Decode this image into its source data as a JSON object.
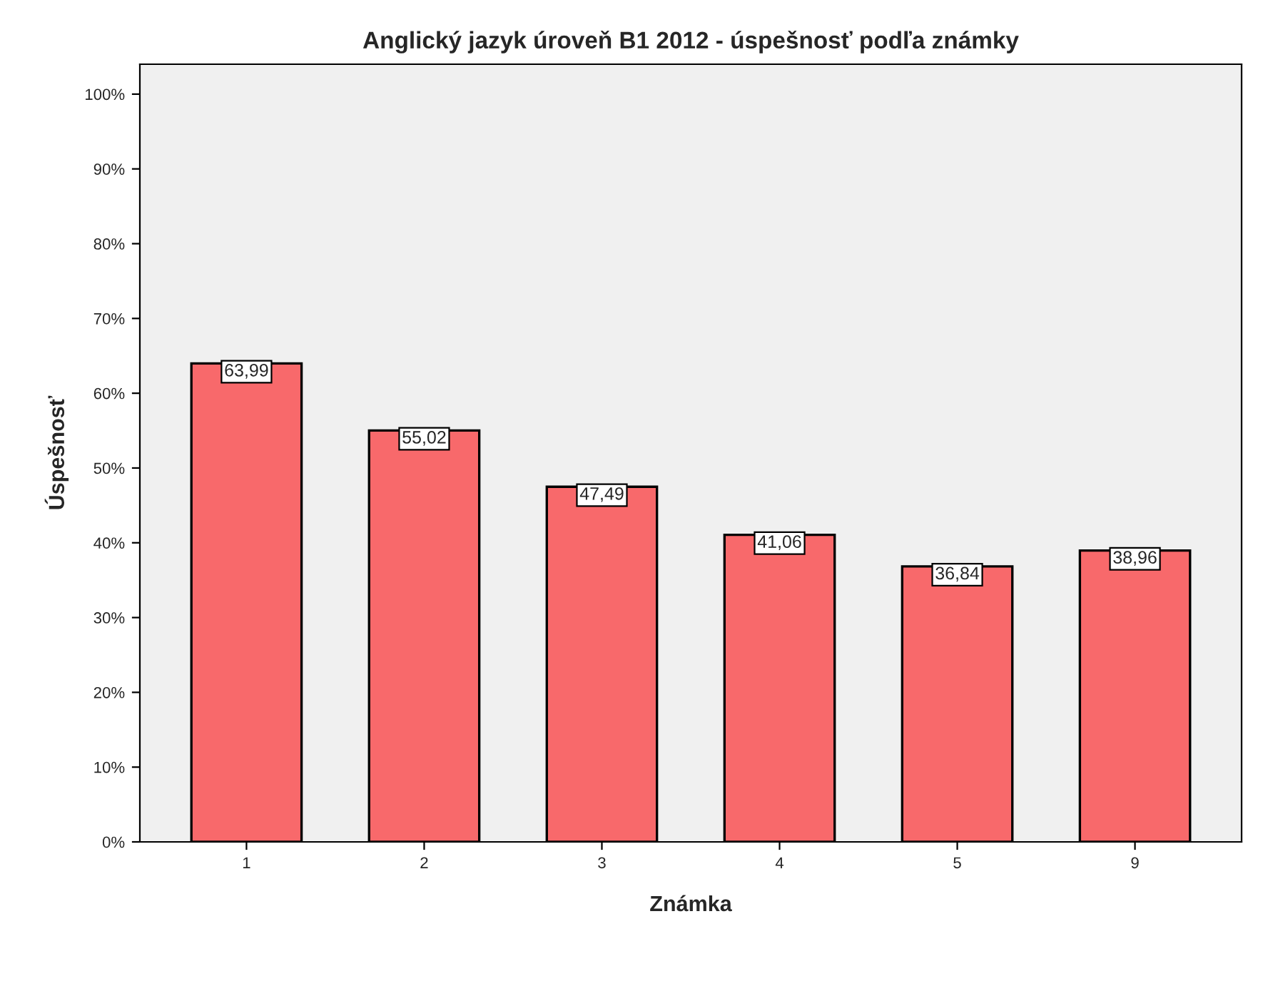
{
  "chart_data": {
    "type": "bar",
    "title": "Anglický jazyk úroveň B1 2012 - úspešnosť podľa známky",
    "xlabel": "Známka",
    "ylabel": "Úspešnosť",
    "categories": [
      "1",
      "2",
      "3",
      "4",
      "5",
      "9"
    ],
    "values": [
      63.99,
      55.02,
      47.49,
      41.06,
      36.84,
      38.96
    ],
    "value_labels": [
      "63,99",
      "55,02",
      "47,49",
      "41,06",
      "36,84",
      "38,96"
    ],
    "color": "#f8696b",
    "ylim": [
      0,
      104
    ],
    "yticks": [
      {
        "value": 0,
        "label": "0%"
      },
      {
        "value": 10,
        "label": "10%"
      },
      {
        "value": 20,
        "label": "20%"
      },
      {
        "value": 30,
        "label": "30%"
      },
      {
        "value": 40,
        "label": "40%"
      },
      {
        "value": 50,
        "label": "50%"
      },
      {
        "value": 60,
        "label": "60%"
      },
      {
        "value": 70,
        "label": "70%"
      },
      {
        "value": 80,
        "label": "80%"
      },
      {
        "value": 90,
        "label": "90%"
      },
      {
        "value": 100,
        "label": "100%"
      }
    ],
    "grid": false
  }
}
